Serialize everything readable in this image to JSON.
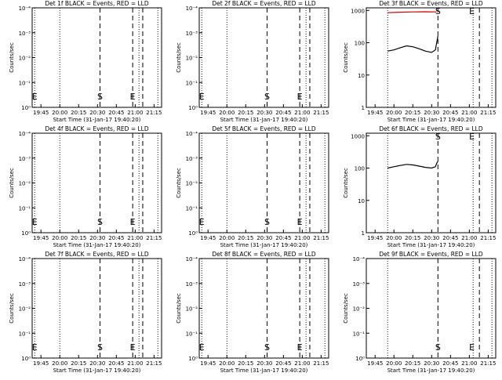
{
  "chart_data": [
    {
      "type": "line",
      "title": "Det 1f BLACK = Events, RED = LLD",
      "xlabel": "Start Time (31-Jan-17 19:40:20)",
      "ylabel": "Counts/sec",
      "yscale": "log",
      "ylim": [
        1e-06,
        0.0001
      ],
      "yticks": [
        "10⁰",
        "10⁻¹",
        "10⁻²",
        "10⁻³",
        "10⁻⁴"
      ],
      "xticks": [
        "19:45",
        "20:00",
        "20:15",
        "20:30",
        "20:45",
        "21:00",
        "21:15"
      ],
      "xlim": [
        "19:38",
        "21:21"
      ],
      "dotted_lines": [
        "19:40",
        "20:00",
        "21:03",
        "21:18"
      ],
      "dashed_lines": [
        "20:32",
        "20:58",
        "21:06"
      ],
      "markers": [
        {
          "label": "E",
          "x": "19:40"
        },
        {
          "label": "S",
          "x": "20:32"
        },
        {
          "label": "E",
          "x": "20:58"
        }
      ],
      "series": []
    },
    {
      "type": "line",
      "title": "Det 2f BLACK = Events, RED = LLD",
      "xlabel": "Start Time (31-Jan-17 19:40:20)",
      "ylabel": "Counts/sec",
      "yscale": "log",
      "ylim": [
        1e-06,
        0.0001
      ],
      "yticks": [
        "10⁰",
        "10⁻¹",
        "10⁻²",
        "10⁻³",
        "10⁻⁴"
      ],
      "xticks": [
        "19:45",
        "20:00",
        "20:15",
        "20:30",
        "20:45",
        "21:00",
        "21:15"
      ],
      "xlim": [
        "19:38",
        "21:21"
      ],
      "dotted_lines": [
        "19:40",
        "20:00",
        "21:03",
        "21:18"
      ],
      "dashed_lines": [
        "20:32",
        "20:58",
        "21:06"
      ],
      "markers": [
        {
          "label": "E",
          "x": "19:40"
        },
        {
          "label": "S",
          "x": "20:32"
        },
        {
          "label": "E",
          "x": "20:58"
        }
      ],
      "series": []
    },
    {
      "type": "line",
      "title": "Det 3f BLACK = Events, RED = LLD",
      "xlabel": "Start Time (31-Jan-17 19:40:20)",
      "ylabel": "Counts/sec",
      "yscale": "log",
      "ylim": [
        1,
        1200
      ],
      "yticks": [
        "1",
        "10",
        "100",
        "1000"
      ],
      "xticks": [
        "19:45",
        "20:00",
        "20:15",
        "20:30",
        "20:45",
        "21:00",
        "21:15"
      ],
      "xlim": [
        "19:38",
        "21:21"
      ],
      "dotted_lines": [
        "19:55",
        "21:03",
        "21:18"
      ],
      "dashed_lines": [
        "20:35",
        "21:08"
      ],
      "markers": [
        {
          "label": "S",
          "x": "20:35"
        },
        {
          "label": "E",
          "x": "21:02"
        }
      ],
      "series": [
        {
          "color": "#cc0000",
          "x": [
            "19:55",
            "20:05",
            "20:15",
            "20:25",
            "20:34"
          ],
          "y": [
            850,
            880,
            900,
            910,
            900
          ]
        },
        {
          "color": "#000000",
          "x": [
            "19:55",
            "20:00",
            "20:05",
            "20:10",
            "20:15",
            "20:20",
            "20:25",
            "20:30",
            "20:33",
            "20:34",
            "20:35"
          ],
          "y": [
            55,
            60,
            70,
            80,
            75,
            65,
            55,
            50,
            60,
            100,
            160
          ]
        }
      ]
    },
    {
      "type": "line",
      "title": "Det 4f BLACK = Events, RED = LLD",
      "xlabel": "Start Time (31-Jan-17 19:40:20)",
      "ylabel": "Counts/sec",
      "yscale": "log",
      "ylim": [
        1e-06,
        0.0001
      ],
      "yticks": [
        "10⁰",
        "10⁻¹",
        "10⁻²",
        "10⁻³",
        "10⁻⁴"
      ],
      "xticks": [
        "19:45",
        "20:00",
        "20:15",
        "20:30",
        "20:45",
        "21:00",
        "21:15"
      ],
      "xlim": [
        "19:38",
        "21:21"
      ],
      "dotted_lines": [
        "19:40",
        "20:00",
        "21:03",
        "21:18"
      ],
      "dashed_lines": [
        "20:32",
        "20:58",
        "21:06"
      ],
      "markers": [
        {
          "label": "E",
          "x": "19:40"
        },
        {
          "label": "S",
          "x": "20:32"
        },
        {
          "label": "E",
          "x": "20:58"
        }
      ],
      "series": []
    },
    {
      "type": "line",
      "title": "Det 5f BLACK = Events, RED = LLD",
      "xlabel": "Start Time (31-Jan-17 19:40:20)",
      "ylabel": "Counts/sec",
      "yscale": "log",
      "ylim": [
        1e-06,
        0.0001
      ],
      "yticks": [
        "10⁰",
        "10⁻¹",
        "10⁻²",
        "10⁻³",
        "10⁻⁴"
      ],
      "xticks": [
        "19:45",
        "20:00",
        "20:15",
        "20:30",
        "20:45",
        "21:00",
        "21:15"
      ],
      "xlim": [
        "19:38",
        "21:21"
      ],
      "dotted_lines": [
        "19:40",
        "20:00",
        "21:03",
        "21:18"
      ],
      "dashed_lines": [
        "20:32",
        "20:58",
        "21:06"
      ],
      "markers": [
        {
          "label": "E",
          "x": "19:40"
        },
        {
          "label": "S",
          "x": "20:32"
        },
        {
          "label": "E",
          "x": "20:58"
        }
      ],
      "series": []
    },
    {
      "type": "line",
      "title": "Det 6f BLACK = Events, RED = LLD",
      "xlabel": "Start Time (31-Jan-17 19:40:20)",
      "ylabel": "Counts/sec",
      "yscale": "log",
      "ylim": [
        1,
        1200
      ],
      "yticks": [
        "1",
        "10",
        "100",
        "1000"
      ],
      "xticks": [
        "19:45",
        "20:00",
        "20:15",
        "20:30",
        "20:45",
        "21:00",
        "21:15"
      ],
      "xlim": [
        "19:38",
        "21:21"
      ],
      "dotted_lines": [
        "19:55",
        "21:03",
        "21:18"
      ],
      "dashed_lines": [
        "20:35",
        "21:08"
      ],
      "markers": [
        {
          "label": "S",
          "x": "20:35"
        },
        {
          "label": "E",
          "x": "21:02"
        }
      ],
      "series": [
        {
          "color": "#000000",
          "x": [
            "19:55",
            "20:00",
            "20:05",
            "20:10",
            "20:15",
            "20:20",
            "20:25",
            "20:30",
            "20:33",
            "20:34",
            "20:35"
          ],
          "y": [
            100,
            110,
            120,
            130,
            125,
            115,
            105,
            100,
            110,
            140,
            160
          ]
        }
      ]
    },
    {
      "type": "line",
      "title": "Det 7f BLACK = Events, RED = LLD",
      "xlabel": "Start Time (31-Jan-17 19:40:20)",
      "ylabel": "Counts/sec",
      "yscale": "log",
      "ylim": [
        1e-06,
        0.0001
      ],
      "yticks": [
        "10⁰",
        "10⁻¹",
        "10⁻²",
        "10⁻³",
        "10⁻⁴"
      ],
      "xticks": [
        "19:45",
        "20:00",
        "20:15",
        "20:30",
        "20:45",
        "21:00",
        "21:15"
      ],
      "xlim": [
        "19:38",
        "21:21"
      ],
      "dotted_lines": [
        "19:40",
        "20:00",
        "21:03",
        "21:18"
      ],
      "dashed_lines": [
        "20:32",
        "20:58",
        "21:06"
      ],
      "markers": [
        {
          "label": "E",
          "x": "19:40"
        },
        {
          "label": "S",
          "x": "20:32"
        },
        {
          "label": "E",
          "x": "20:58"
        }
      ],
      "series": []
    },
    {
      "type": "line",
      "title": "Det 8f BLACK = Events, RED = LLD",
      "xlabel": "Start Time (31-Jan-17 19:40:20)",
      "ylabel": "Counts/sec",
      "yscale": "log",
      "ylim": [
        1e-06,
        0.0001
      ],
      "yticks": [
        "10⁰",
        "10⁻¹",
        "10⁻²",
        "10⁻³",
        "10⁻⁴"
      ],
      "xticks": [
        "19:45",
        "20:00",
        "20:15",
        "20:30",
        "20:45",
        "21:00",
        "21:15"
      ],
      "xlim": [
        "19:38",
        "21:21"
      ],
      "dotted_lines": [
        "19:40",
        "20:00",
        "21:03",
        "21:18"
      ],
      "dashed_lines": [
        "20:32",
        "20:58",
        "21:06"
      ],
      "markers": [
        {
          "label": "E",
          "x": "19:40"
        },
        {
          "label": "S",
          "x": "20:32"
        },
        {
          "label": "E",
          "x": "20:58"
        }
      ],
      "series": []
    },
    {
      "type": "line",
      "title": "Det 9f BLACK = Events, RED = LLD",
      "xlabel": "Start Time (31-Jan-17 19:40:20)",
      "ylabel": "Counts/sec",
      "yscale": "log",
      "ylim": [
        1e-06,
        0.0001
      ],
      "yticks": [
        "10⁰",
        "10⁻¹",
        "10⁻²",
        "10⁻³",
        "10⁻⁴"
      ],
      "xticks": [
        "19:45",
        "20:00",
        "20:15",
        "20:30",
        "20:45",
        "21:00",
        "21:15"
      ],
      "xlim": [
        "19:38",
        "21:21"
      ],
      "dotted_lines": [
        "19:55",
        "21:03",
        "21:18"
      ],
      "dashed_lines": [
        "20:35",
        "21:08"
      ],
      "markers": [
        {
          "label": "S",
          "x": "20:35"
        },
        {
          "label": "E",
          "x": "21:02"
        }
      ],
      "series": []
    }
  ]
}
